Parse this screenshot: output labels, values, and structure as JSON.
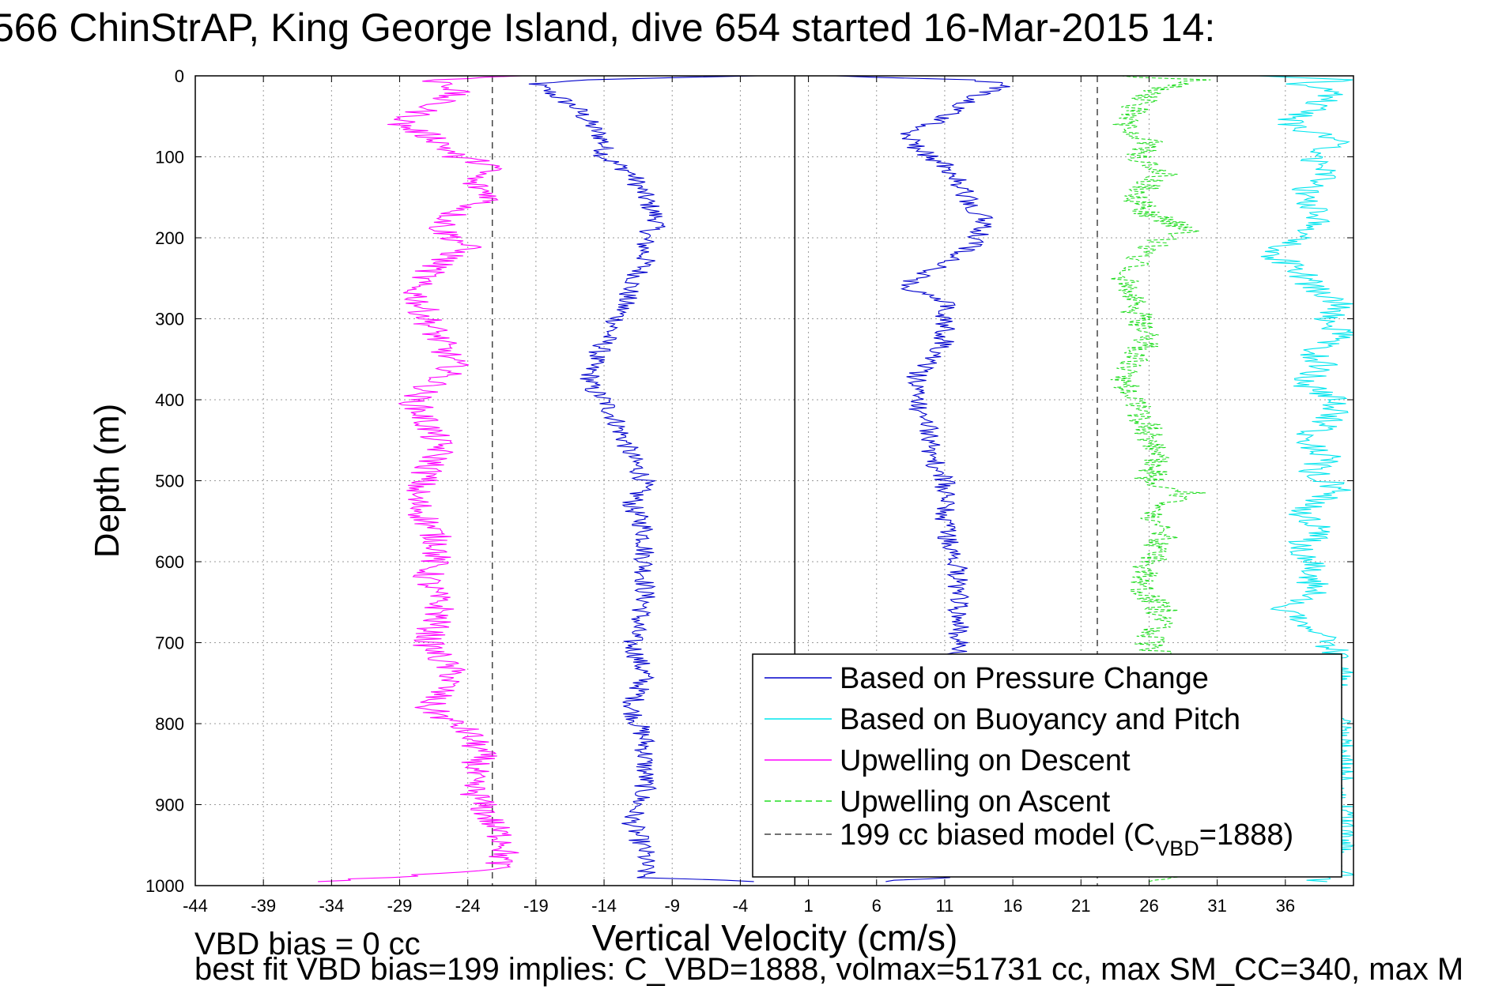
{
  "title": "566 ChinStrAP, King George Island, dive 654 started 16-Mar-2015 14:",
  "footer": {
    "line1": "VBD bias = 0 cc",
    "line2": "best fit VBD bias=199 implies: C_VBD=1888, volmax=51731 cc, max SM_CC=340, max M"
  },
  "chart_data": {
    "type": "line",
    "xlabel": "Vertical Velocity (cm/s)",
    "ylabel": "Depth (m)",
    "xlim": [
      -44,
      41
    ],
    "ylim": [
      1000,
      0
    ],
    "y_reversed": true,
    "grid": true,
    "xticks": [
      -44,
      -39,
      -34,
      -29,
      -24,
      -19,
      -14,
      -9,
      -4,
      1,
      6,
      11,
      16,
      21,
      26,
      31,
      36
    ],
    "yticks": [
      0,
      100,
      200,
      300,
      400,
      500,
      600,
      700,
      800,
      900,
      1000
    ],
    "legend_location": "lower-right",
    "reference_lines": [
      {
        "x": 0,
        "style": "solid",
        "color": "#000000"
      },
      {
        "x": -22.2,
        "style": "dashed",
        "color": "#444444"
      },
      {
        "x": 22.2,
        "style": "dashed",
        "color": "#444444"
      }
    ],
    "series": [
      {
        "name": "Based on Pressure Change",
        "color": "#0000cc",
        "dash": "solid",
        "descent": {
          "depth": [
            0,
            5,
            10,
            20,
            40,
            60,
            80,
            100,
            120,
            150,
            180,
            200,
            230,
            260,
            300,
            330,
            360,
            385,
            400,
            430,
            470,
            500,
            530,
            560,
            600,
            650,
            700,
            740,
            780,
            820,
            850,
            880,
            920,
            960,
            990,
            995
          ],
          "velocity": [
            -3,
            -16,
            -19,
            -18,
            -16,
            -15,
            -14,
            -14,
            -12,
            -11,
            -10,
            -11,
            -11,
            -12,
            -13,
            -14,
            -15,
            -15,
            -14,
            -13,
            -12,
            -11,
            -12,
            -11,
            -11,
            -11,
            -12,
            -11,
            -12,
            -11,
            -11,
            -11,
            -12,
            -11,
            -11,
            -3
          ]
        },
        "ascent": {
          "depth": [
            995,
            990,
            960,
            920,
            880,
            840,
            800,
            760,
            720,
            700,
            650,
            600,
            560,
            520,
            500,
            470,
            440,
            410,
            390,
            370,
            350,
            330,
            300,
            280,
            260,
            250,
            230,
            210,
            180,
            160,
            130,
            110,
            90,
            70,
            60,
            40,
            20,
            10,
            5,
            0
          ],
          "velocity": [
            6,
            11,
            12,
            12,
            12,
            12,
            12,
            12,
            12,
            12,
            12,
            12,
            11,
            11,
            11,
            10,
            10,
            9,
            9,
            9,
            10,
            11,
            11,
            11,
            8,
            9,
            11,
            13,
            14,
            13,
            12,
            11,
            9,
            8,
            10,
            12,
            14,
            16,
            13,
            3
          ]
        }
      },
      {
        "name": "Based on Buoyancy and Pitch",
        "color": "#00e5ee",
        "dash": "solid",
        "descent": {
          "depth": [],
          "velocity": []
        },
        "ascent": {
          "depth": [
            995,
            990,
            960,
            920,
            880,
            840,
            800,
            780,
            760,
            740,
            720,
            700,
            660,
            640,
            610,
            580,
            560,
            540,
            510,
            490,
            470,
            450,
            430,
            400,
            380,
            360,
            340,
            320,
            300,
            280,
            260,
            240,
            220,
            200,
            180,
            150,
            120,
            100,
            80,
            60,
            40,
            20,
            10,
            5,
            0
          ],
          "velocity": [
            38,
            40,
            40,
            40,
            40,
            40,
            40,
            39,
            39,
            40,
            40,
            39,
            36,
            38,
            38,
            37,
            39,
            37,
            40,
            38,
            39,
            37,
            39,
            40,
            37,
            39,
            38,
            40,
            39,
            40,
            38,
            37,
            35,
            37,
            39,
            37,
            39,
            38,
            40,
            36,
            38,
            40,
            37,
            41,
            34
          ]
        }
      },
      {
        "name": "Upwelling on Descent",
        "color": "#ff00ff",
        "dash": "solid",
        "descent": {
          "depth": [
            0,
            5,
            10,
            20,
            40,
            60,
            80,
            100,
            110,
            130,
            150,
            170,
            190,
            210,
            230,
            260,
            300,
            330,
            360,
            400,
            430,
            460,
            490,
            520,
            550,
            580,
            620,
            660,
            700,
            740,
            780,
            810,
            840,
            870,
            900,
            930,
            950,
            980,
            990,
            995
          ],
          "velocity": [
            -20,
            -27,
            -25,
            -25,
            -27,
            -29,
            -26,
            -25,
            -22,
            -24,
            -22,
            -25,
            -26,
            -24,
            -26,
            -28,
            -27,
            -26,
            -25,
            -28,
            -27,
            -26,
            -27,
            -28,
            -27,
            -26,
            -27,
            -26,
            -27,
            -25,
            -27,
            -24,
            -23,
            -24,
            -23,
            -22,
            -21,
            -22,
            -30,
            -35
          ]
        },
        "ascent": {
          "depth": [],
          "velocity": []
        }
      },
      {
        "name": "Upwelling on Ascent",
        "color": "#22dd22",
        "dash": "dashed",
        "descent": {
          "depth": [],
          "velocity": []
        },
        "ascent": {
          "depth": [
            995,
            990,
            960,
            920,
            880,
            840,
            800,
            760,
            720,
            700,
            660,
            630,
            600,
            570,
            540,
            515,
            500,
            470,
            440,
            410,
            380,
            350,
            320,
            290,
            260,
            230,
            200,
            190,
            170,
            150,
            120,
            100,
            80,
            60,
            40,
            20,
            10,
            5,
            0
          ],
          "velocity": [
            26,
            28,
            27,
            27,
            28,
            27,
            27,
            27,
            27,
            26,
            27,
            25,
            26,
            27,
            26,
            29,
            26,
            27,
            26,
            25,
            24,
            25,
            26,
            25,
            24,
            25,
            27,
            29,
            26,
            25,
            27,
            25,
            26,
            24,
            25,
            26,
            28,
            30,
            24
          ]
        }
      }
    ],
    "legend": [
      {
        "label": "Based on Pressure Change",
        "color": "#0000cc",
        "dash": "solid"
      },
      {
        "label": "Based on Buoyancy and Pitch",
        "color": "#00e5ee",
        "dash": "solid"
      },
      {
        "label": "Upwelling on Descent",
        "color": "#ff00ff",
        "dash": "solid"
      },
      {
        "label": "Upwelling on Ascent",
        "color": "#22dd22",
        "dash": "dashed"
      },
      {
        "label": "199 cc biased model (C",
        "subscript": "VBD",
        "suffix": "=1888)",
        "color": "#444444",
        "dash": "dashed"
      }
    ]
  }
}
